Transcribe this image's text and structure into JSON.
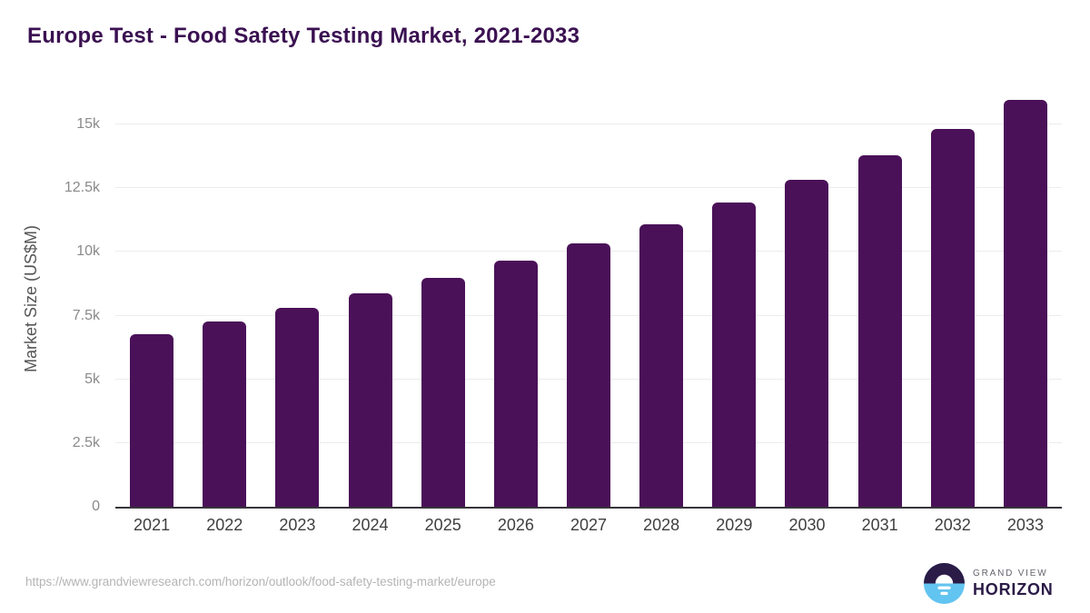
{
  "title": "Europe Test - Food Safety Testing Market, 2021-2033",
  "footer": {
    "source_url": "https://www.grandviewresearch.com/horizon/outlook/food-safety-testing-market/europe",
    "logo": {
      "top_text": "GRAND VIEW",
      "bottom_text": "HORIZON"
    }
  },
  "colors": {
    "bar": "#4a1158",
    "title": "#3b1152",
    "axis_line": "#37343a",
    "gridline": "#ececec",
    "tick_label": "#8a8a8a",
    "x_label": "#3f3f3f",
    "url": "#b4b4b4",
    "logo_dark": "#2b1b47",
    "logo_blue": "#62c4f0"
  },
  "chart_data": {
    "type": "bar",
    "title": "Europe Test - Food Safety Testing Market, 2021-2033",
    "xlabel": "",
    "ylabel": "Market Size (US$M)",
    "categories": [
      "2021",
      "2022",
      "2023",
      "2024",
      "2025",
      "2026",
      "2027",
      "2028",
      "2029",
      "2030",
      "2031",
      "2032",
      "2033"
    ],
    "values": [
      6780,
      7270,
      7810,
      8370,
      8970,
      9660,
      10320,
      11090,
      11930,
      12840,
      13780,
      14820,
      15950
    ],
    "ylim": [
      0,
      16320
    ],
    "yticks": {
      "values": [
        0,
        2500,
        5000,
        7500,
        10000,
        12500,
        15000
      ],
      "labels": [
        "0",
        "2.5k",
        "5k",
        "7.5k",
        "10k",
        "12.5k",
        "15k"
      ]
    },
    "grid": true,
    "legend": false
  }
}
